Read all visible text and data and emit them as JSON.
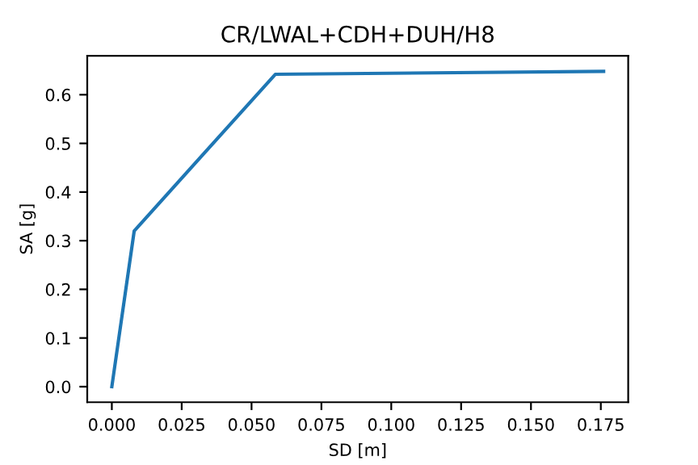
{
  "chart_data": {
    "type": "line",
    "title": "CR/LWAL+CDH+DUH/H8",
    "xlabel": "SD [m]",
    "ylabel": "SA [g]",
    "x": [
      0,
      0.008,
      0.0585,
      0.176
    ],
    "series": [
      {
        "color": "#1f77b4",
        "values": [
          0,
          0.32,
          0.642,
          0.648
        ]
      }
    ],
    "xlim": [
      -0.0088,
      0.1848
    ],
    "ylim": [
      -0.032,
      0.68
    ],
    "xticks": [
      {
        "value": 0,
        "label": "0.000"
      },
      {
        "value": 0.025,
        "label": "0.025"
      },
      {
        "value": 0.05,
        "label": "0.050"
      },
      {
        "value": 0.075,
        "label": "0.075"
      },
      {
        "value": 0.1,
        "label": "0.100"
      },
      {
        "value": 0.125,
        "label": "0.125"
      },
      {
        "value": 0.15,
        "label": "0.150"
      },
      {
        "value": 0.175,
        "label": "0.175"
      }
    ],
    "yticks": [
      {
        "value": 0,
        "label": "0.0"
      },
      {
        "value": 0.1,
        "label": "0.1"
      },
      {
        "value": 0.2,
        "label": "0.2"
      },
      {
        "value": 0.3,
        "label": "0.3"
      },
      {
        "value": 0.4,
        "label": "0.4"
      },
      {
        "value": 0.5,
        "label": "0.5"
      },
      {
        "value": 0.6,
        "label": "0.6"
      }
    ],
    "grid": false,
    "marker": "none",
    "line_style": "solid"
  }
}
